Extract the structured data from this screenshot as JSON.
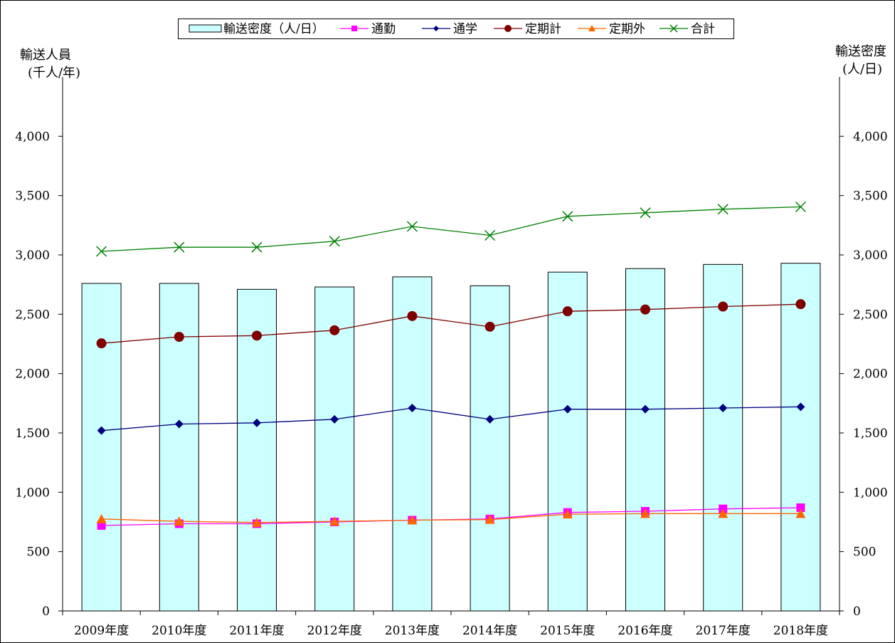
{
  "chart_data": {
    "type": "bar+line",
    "categories": [
      "2009年度",
      "2010年度",
      "2011年度",
      "2012年度",
      "2013年度",
      "2014年度",
      "2015年度",
      "2016年度",
      "2017年度",
      "2018年度"
    ],
    "left_axis": {
      "label_line1": "輸送人員",
      "label_line2": "(千人/年)",
      "ylim": [
        0,
        4500
      ],
      "ticks": [
        0,
        500,
        1000,
        1500,
        2000,
        2500,
        3000,
        3500,
        4000
      ],
      "tick_labels": [
        "0",
        "500",
        "1,000",
        "1,500",
        "2,000",
        "2,500",
        "3,000",
        "3,500",
        "4,000"
      ]
    },
    "right_axis": {
      "label_line1": "輸送密度",
      "label_line2": "(人/日)",
      "ylim": [
        0,
        4500
      ],
      "ticks": [
        0,
        500,
        1000,
        1500,
        2000,
        2500,
        3000,
        3500,
        4000
      ],
      "tick_labels": [
        "0",
        "500",
        "1,000",
        "1,500",
        "2,000",
        "2,500",
        "3,000",
        "3,500",
        "4,000"
      ]
    },
    "bars": {
      "name": "輸送密度（人/日）",
      "axis": "right",
      "color": "#ccffff",
      "values": [
        2760,
        2760,
        2710,
        2730,
        2815,
        2740,
        2855,
        2885,
        2920,
        2930
      ]
    },
    "series": [
      {
        "name": "通勤",
        "axis": "left",
        "color": "#ff00ff",
        "marker": "square",
        "values": [
          720,
          735,
          735,
          750,
          765,
          775,
          830,
          840,
          860,
          870
        ]
      },
      {
        "name": "通学",
        "axis": "left",
        "color": "#000080",
        "marker": "diamond",
        "values": [
          1520,
          1575,
          1585,
          1615,
          1710,
          1615,
          1700,
          1700,
          1710,
          1720
        ]
      },
      {
        "name": "定期計",
        "axis": "left",
        "color": "#800000",
        "marker": "circle",
        "values": [
          2255,
          2310,
          2320,
          2365,
          2485,
          2395,
          2525,
          2540,
          2565,
          2585
        ]
      },
      {
        "name": "定期外",
        "axis": "left",
        "color": "#ff6600",
        "marker": "triangle",
        "values": [
          775,
          755,
          745,
          755,
          765,
          770,
          815,
          820,
          820,
          820
        ]
      },
      {
        "name": "合計",
        "axis": "left",
        "color": "#008000",
        "marker": "x",
        "values": [
          3030,
          3065,
          3065,
          3115,
          3240,
          3165,
          3325,
          3355,
          3385,
          3405
        ]
      }
    ],
    "legend": {
      "placement": "top-center",
      "items": [
        "輸送密度（人/日）",
        "通勤",
        "通学",
        "定期計",
        "定期外",
        "合計"
      ]
    },
    "grid": false
  }
}
